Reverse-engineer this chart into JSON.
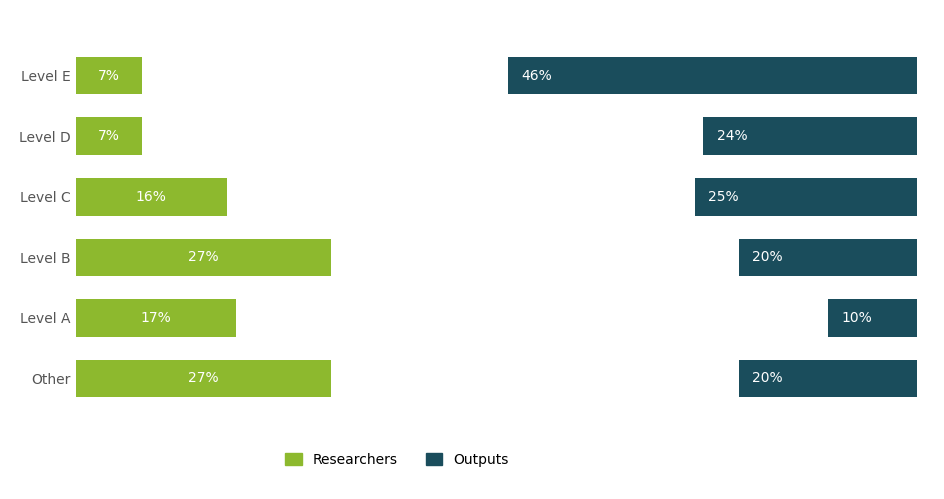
{
  "categories": [
    "Level E",
    "Level D",
    "Level C",
    "Level B",
    "Level A",
    "Other"
  ],
  "researchers": [
    7,
    7,
    16,
    27,
    17,
    27
  ],
  "outputs": [
    46,
    24,
    25,
    20,
    10,
    20
  ],
  "researcher_color": "#8db92e",
  "output_color": "#1a4d5c",
  "background_color": "#ffffff",
  "label_color": "#ffffff",
  "legend_researchers": "Researchers",
  "legend_outputs": "Outputs",
  "researcher_max": 30,
  "output_max": 50,
  "label_fontsize": 10,
  "tick_fontsize": 10,
  "tick_color": "#555555"
}
